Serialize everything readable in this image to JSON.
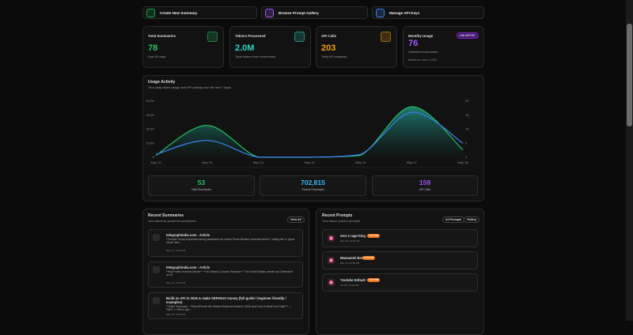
{
  "toolbar": {
    "buttons": [
      "Create New Summary",
      "Browse Prompt Gallery",
      "Manage API Keys"
    ]
  },
  "stats": [
    {
      "label": "Total Summaries",
      "value": 78,
      "note": "Last 30 days"
    },
    {
      "label": "Tokens Processed",
      "value": "2.0M",
      "note": "Total tokens from summaries"
    },
    {
      "label": "API Calls",
      "value": 203,
      "note": "Total API requests"
    },
    {
      "label": "Monthly Usage",
      "badge": "UNLIMITED",
      "value": 76,
      "note": "Unlimited summaries",
      "footnote": "Resets on June 6, 2025"
    }
  ],
  "chart_data": {
    "type": "line",
    "title": "Usage Activity",
    "subtitle": "Your daily token usage and API activity over the last 7 days",
    "categories": [
      "May 12",
      "May 13",
      "May 14",
      "May 15",
      "May 16",
      "May 17",
      "May 18"
    ],
    "series": [
      {
        "color": "#22c55e",
        "values": [
          2000,
          34000,
          0,
          0,
          2000,
          54000,
          8000
        ]
      },
      {
        "color": "#3b82f6",
        "axis": "y2",
        "values": [
          1,
          6,
          0,
          0,
          1,
          16,
          5
        ]
      }
    ],
    "ylim": [
      0,
      60000
    ],
    "yticks": [
      0,
      {
        "value": 15000,
        "label": "15.0K"
      },
      {
        "value": 30000,
        "label": "30.0K"
      },
      {
        "value": 45000,
        "label": "45.0K"
      },
      {
        "value": 60000,
        "label": "60.0K"
      }
    ],
    "y2lim": [
      0,
      20
    ],
    "y2ticks": [
      0,
      5,
      10,
      15,
      20
    ]
  },
  "totals": [
    {
      "value": 53,
      "label": "Total Summaries"
    },
    {
      "value": "702,815",
      "label": "Tokens Processed"
    },
    {
      "value": 159,
      "label": "API Calls"
    }
  ],
  "recent_summaries": {
    "title": "Recent Summaries",
    "subtitle": "Your latest AI-powered summaries",
    "action": "View All",
    "items": [
      {
        "title": "telegraphindia.com - Article",
        "excerpt": "**Donald Trump expressed strong admiration for Indian Prime Minister Narendra Modi**, calling him a \"great friend\" and ...",
        "date": "May 17, 12:46 AM"
      },
      {
        "title": "telegraphindia.com - Article",
        "excerpt": "**Key Points from the Article**: **US Strikes & Iranian Reaction**: The United States carried out \"defensive\" air st...",
        "date": "May 16, 12:46 AM"
      },
      {
        "title": "Build an API in 2026 & make SERIOUS money (full guide / beginner friendly / examples)",
        "excerpt": "**Video Summary – \"Why APIs Are the Hidden Business Model in 2026 (and How to Build One Fast)\"** — PART 1: Who's ope...",
        "date": "May 15, 10:30 AM"
      }
    ]
  },
  "recent_prompts": {
    "title": "Recent Prompts",
    "subtitle": "Your latest custom prompts",
    "actions": [
      "All Prompts",
      "Gallery"
    ],
    "items": [
      {
        "title": "Gen Z rage blog",
        "badge": "CUSTOM",
        "date": "May 09, 09:35 AM"
      },
      {
        "title": "Mamamiei Bot",
        "badge": "CUSTOM",
        "date": "May 13, 09:30 AM"
      },
      {
        "title": "Youtube Default",
        "badge": "CUSTOM",
        "date": "Oct 03, 10:30 PM"
      }
    ]
  }
}
